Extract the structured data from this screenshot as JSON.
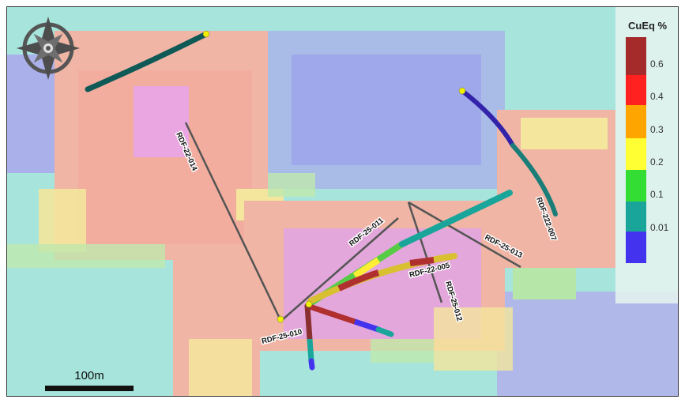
{
  "legend": {
    "title": "CuEq %",
    "ticks": [
      "0.6",
      "0.4",
      "0.3",
      "0.2",
      "0.1",
      "0.01"
    ],
    "colors": [
      "#a52a2a",
      "#ff2020",
      "#ffa500",
      "#ffff33",
      "#33dd33",
      "#1aa59a",
      "#4433ee"
    ]
  },
  "scale_bar": {
    "label": "100m"
  },
  "compass": {
    "icon": "compass-rose-icon"
  },
  "drill_holes": [
    {
      "id": "RDF-22-014"
    },
    {
      "id": "RDF-25-011"
    },
    {
      "id": "RDF-22-005"
    },
    {
      "id": "RDF-25-012"
    },
    {
      "id": "RDF-25-013"
    },
    {
      "id": "RDF-222-007"
    },
    {
      "id": "RDF-25-010"
    }
  ]
}
